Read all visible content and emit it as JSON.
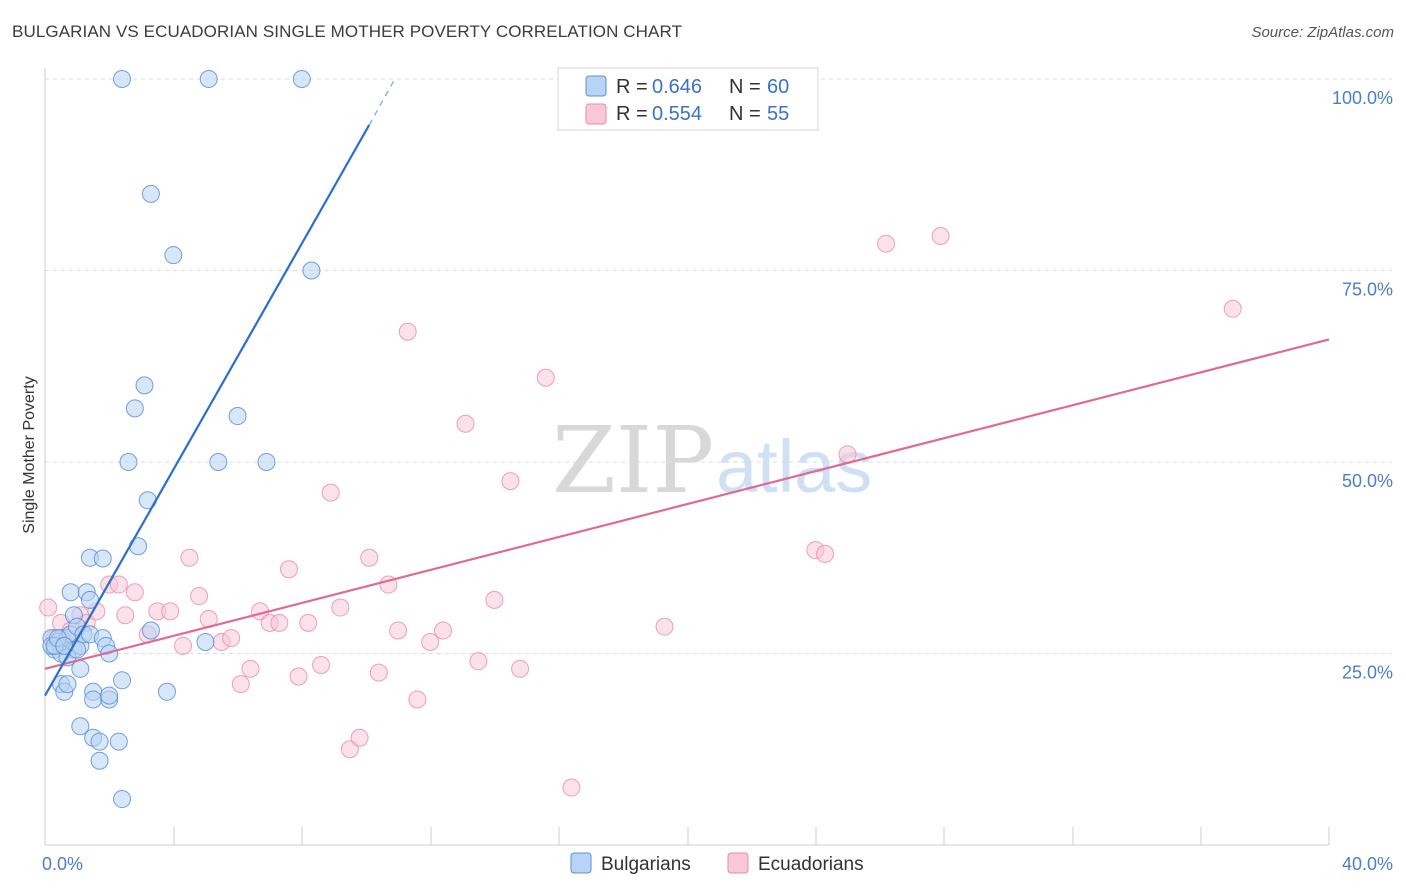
{
  "title": "BULGARIAN VS ECUADORIAN SINGLE MOTHER POVERTY CORRELATION CHART",
  "source": "Source: ZipAtlas.com",
  "watermark": {
    "zip": "ZIP",
    "atlas": "atlas"
  },
  "colors": {
    "bulgarians_fill": "#b8d3f3",
    "bulgarians_stroke": "#5b8fd6",
    "bulgarians_line": "#2b6fcc",
    "ecuadorians_fill": "#f8c8d8",
    "ecuadorians_stroke": "#e88aa8",
    "ecuadorians_line": "#e06a93",
    "grid": "#dddddd",
    "tick_text": "#4a7fc8"
  },
  "legend": {
    "rows": [
      {
        "r_label": "R = ",
        "r_value": "0.646",
        "n_label": "N = ",
        "n_value": "60"
      },
      {
        "r_label": "R = ",
        "r_value": "0.554",
        "n_label": "N = ",
        "n_value": "55"
      }
    ]
  },
  "chart_data": {
    "type": "scatter",
    "title": "BULGARIAN VS ECUADORIAN SINGLE MOTHER POVERTY CORRELATION CHART",
    "ylabel": "Single Mother Poverty",
    "xlabel": "",
    "xlim": [
      0,
      40
    ],
    "ylim": [
      0,
      105
    ],
    "x_ticks": [
      {
        "value": 0,
        "label": "0.0%"
      },
      {
        "value": 40,
        "label": "40.0%"
      }
    ],
    "y_ticks": [
      {
        "value": 25,
        "label": "25.0%"
      },
      {
        "value": 50,
        "label": "50.0%"
      },
      {
        "value": 75,
        "label": "75.0%"
      },
      {
        "value": 100,
        "label": "100.0%"
      }
    ],
    "series": [
      {
        "name": "Bulgarians",
        "R": 0.646,
        "N": 60,
        "trend": {
          "x0": 0.0,
          "y0": 19.5,
          "x1": 10.1,
          "y1": 94.0,
          "dash_x1": 10.9,
          "dash_y1": 100.0
        },
        "points": [
          [
            2.4,
            100
          ],
          [
            5.1,
            100
          ],
          [
            8.0,
            100
          ],
          [
            3.3,
            85
          ],
          [
            4.0,
            77
          ],
          [
            8.3,
            75
          ],
          [
            3.1,
            60
          ],
          [
            2.8,
            57
          ],
          [
            6.0,
            56
          ],
          [
            2.6,
            50
          ],
          [
            5.4,
            50
          ],
          [
            6.9,
            50
          ],
          [
            3.2,
            45
          ],
          [
            2.9,
            39
          ],
          [
            1.4,
            37.5
          ],
          [
            1.8,
            37.4
          ],
          [
            0.8,
            33
          ],
          [
            1.3,
            33
          ],
          [
            0.9,
            30
          ],
          [
            1.4,
            32
          ],
          [
            0.2,
            27
          ],
          [
            0.4,
            26.5
          ],
          [
            0.5,
            27
          ],
          [
            0.6,
            26
          ],
          [
            0.7,
            27
          ],
          [
            0.8,
            27.5
          ],
          [
            0.9,
            25.5
          ],
          [
            1.0,
            28.5
          ],
          [
            1.1,
            26
          ],
          [
            1.2,
            27.5
          ],
          [
            1.4,
            27.5
          ],
          [
            1.8,
            27
          ],
          [
            1.9,
            26
          ],
          [
            0.3,
            25.5
          ],
          [
            0.5,
            25
          ],
          [
            0.7,
            24.5
          ],
          [
            1.0,
            25.5
          ],
          [
            1.1,
            23
          ],
          [
            2.0,
            25
          ],
          [
            3.3,
            28
          ],
          [
            5.0,
            26.5
          ],
          [
            0.5,
            21
          ],
          [
            0.6,
            20
          ],
          [
            0.7,
            21
          ],
          [
            1.5,
            20
          ],
          [
            1.5,
            19
          ],
          [
            2.0,
            19
          ],
          [
            2.0,
            19.5
          ],
          [
            2.4,
            21.5
          ],
          [
            3.8,
            20
          ],
          [
            1.1,
            15.5
          ],
          [
            1.5,
            14
          ],
          [
            1.7,
            13.5
          ],
          [
            2.3,
            13.5
          ],
          [
            1.7,
            11
          ],
          [
            2.4,
            6
          ],
          [
            0.2,
            26
          ],
          [
            0.3,
            26
          ],
          [
            0.4,
            27
          ],
          [
            0.6,
            26
          ]
        ]
      },
      {
        "name": "Ecuadorians",
        "R": 0.554,
        "N": 55,
        "trend": {
          "x0": 0.0,
          "y0": 23.0,
          "x1": 40.0,
          "y1": 66.0
        },
        "points": [
          [
            0.1,
            31
          ],
          [
            0.5,
            29
          ],
          [
            0.8,
            28
          ],
          [
            1.1,
            30
          ],
          [
            1.3,
            29
          ],
          [
            1.6,
            30.5
          ],
          [
            2.0,
            34
          ],
          [
            2.3,
            34
          ],
          [
            2.5,
            30
          ],
          [
            2.8,
            33
          ],
          [
            3.2,
            27.5
          ],
          [
            3.5,
            30.5
          ],
          [
            3.9,
            30.5
          ],
          [
            4.3,
            26
          ],
          [
            4.5,
            37.5
          ],
          [
            4.8,
            32.5
          ],
          [
            5.1,
            29.5
          ],
          [
            5.5,
            26.5
          ],
          [
            5.8,
            27
          ],
          [
            6.1,
            21
          ],
          [
            6.4,
            23
          ],
          [
            6.7,
            30.5
          ],
          [
            7.0,
            29
          ],
          [
            7.3,
            29
          ],
          [
            7.6,
            36
          ],
          [
            7.9,
            22
          ],
          [
            8.2,
            29
          ],
          [
            8.6,
            23.5
          ],
          [
            8.9,
            46
          ],
          [
            9.2,
            31
          ],
          [
            9.5,
            12.5
          ],
          [
            9.8,
            14
          ],
          [
            10.1,
            37.5
          ],
          [
            10.4,
            22.5
          ],
          [
            10.7,
            34
          ],
          [
            11.0,
            28
          ],
          [
            11.3,
            67
          ],
          [
            11.6,
            19
          ],
          [
            12.0,
            26.5
          ],
          [
            12.4,
            28
          ],
          [
            13.1,
            55
          ],
          [
            13.5,
            24
          ],
          [
            14.0,
            32
          ],
          [
            14.5,
            47.5
          ],
          [
            14.8,
            23
          ],
          [
            15.6,
            61
          ],
          [
            16.4,
            7.5
          ],
          [
            19.3,
            28.5
          ],
          [
            24.0,
            38.5
          ],
          [
            24.3,
            38
          ],
          [
            25.0,
            51
          ],
          [
            26.2,
            78.5
          ],
          [
            27.9,
            79.5
          ],
          [
            37.0,
            70
          ],
          [
            0.3,
            27
          ]
        ]
      }
    ]
  },
  "bottom_legend": [
    "Bulgarians",
    "Ecuadorians"
  ]
}
